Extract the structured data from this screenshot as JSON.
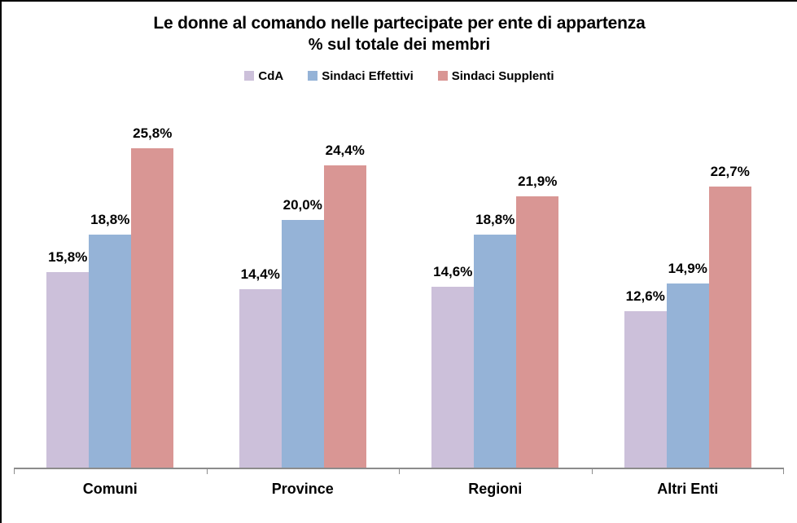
{
  "chart_data": {
    "type": "bar",
    "title": "Le donne al comando nelle partecipate per ente di appartenza",
    "subtitle": "% sul totale dei membri",
    "categories": [
      "Comuni",
      "Province",
      "Regioni",
      "Altri Enti"
    ],
    "series": [
      {
        "name": "CdA",
        "color": "#CCC0DA",
        "values": [
          15.8,
          14.4,
          14.6,
          12.6
        ],
        "labels": [
          "15,8%",
          "14,4%",
          "14,6%",
          "12,6%"
        ]
      },
      {
        "name": "Sindaci Effettivi",
        "color": "#95B3D7",
        "values": [
          18.8,
          20.0,
          18.8,
          14.9
        ],
        "labels": [
          "18,8%",
          "20,0%",
          "18,8%",
          "14,9%"
        ]
      },
      {
        "name": "Sindaci Supplenti",
        "color": "#D99694",
        "values": [
          25.8,
          24.4,
          21.9,
          22.7
        ],
        "labels": [
          "25,8%",
          "24,4%",
          "21,9%",
          "22,7%"
        ]
      }
    ],
    "ylim": [
      0,
      30
    ],
    "grid": false,
    "legend_position": "top",
    "axis_color": "#8C8C8C",
    "text_color": "#000000",
    "background_color": "#FFFFFF"
  }
}
